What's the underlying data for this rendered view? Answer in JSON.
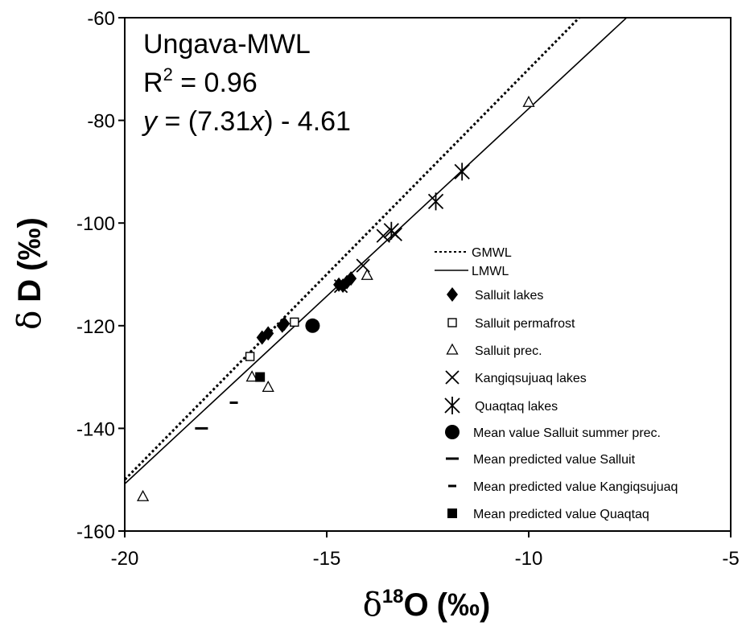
{
  "chart_data": {
    "type": "scatter",
    "xlim": [
      -20,
      -5
    ],
    "ylim": [
      -160,
      -60
    ],
    "x_ticks": [
      -20,
      -15,
      -10,
      -5
    ],
    "y_ticks": [
      -60,
      -80,
      -100,
      -120,
      -140,
      -160
    ],
    "x_tick_labels": [
      "-20",
      "-15",
      "-10",
      "-5"
    ],
    "y_tick_labels": [
      "-60",
      "-80",
      "-100",
      "-120",
      "-140",
      "-160"
    ],
    "xlabel": {
      "prefix": "δ",
      "sup": "18",
      "main": "O",
      "unit": "(‰)"
    },
    "ylabel": {
      "prefix": "δ",
      "main": "D",
      "unit": "(‰)"
    },
    "grid": false,
    "legend_position": "lower-right",
    "annotation": {
      "line1": "Ungava-MWL",
      "r2_prefix": "R",
      "r2_sup": "2",
      "r2_value": " = 0.96",
      "eq_y": "y",
      "eq_mid": " = (7.31",
      "eq_x": "x",
      "eq_end": ") - 4.61"
    },
    "lines": [
      {
        "name": "GMWL",
        "style": "dotted",
        "slope": 8,
        "intercept": 10
      },
      {
        "name": "LMWL",
        "style": "solid",
        "slope": 7.31,
        "intercept": -4.61
      }
    ],
    "series": [
      {
        "name": "Salluit lakes",
        "marker": "diamond",
        "points": [
          [
            -16.6,
            -122.3
          ],
          [
            -16.45,
            -121.5
          ],
          [
            -16.1,
            -120
          ],
          [
            -16.05,
            -119.6
          ],
          [
            -14.7,
            -112
          ],
          [
            -14.6,
            -112.2
          ],
          [
            -14.5,
            -111.5
          ],
          [
            -14.4,
            -110.8
          ]
        ]
      },
      {
        "name": "Salluit permafrost",
        "marker": "open-square",
        "points": [
          [
            -16.9,
            -126
          ],
          [
            -15.8,
            -119.3
          ]
        ]
      },
      {
        "name": "Salluit prec.",
        "marker": "open-triangle",
        "points": [
          [
            -19.55,
            -153.3
          ],
          [
            -16.85,
            -130
          ],
          [
            -16.45,
            -132
          ],
          [
            -14,
            -110.2
          ],
          [
            -10,
            -76.5
          ]
        ]
      },
      {
        "name": "Kangiqsujuaq lakes",
        "marker": "x",
        "points": [
          [
            -14.65,
            -112.3
          ],
          [
            -14.1,
            -108.3
          ],
          [
            -13.6,
            -102.5
          ],
          [
            -13.3,
            -102.2
          ]
        ]
      },
      {
        "name": "Quaqtaq lakes",
        "marker": "asterisk",
        "points": [
          [
            -13.4,
            -101.5
          ],
          [
            -12.3,
            -95.8
          ],
          [
            -11.65,
            -90
          ]
        ]
      },
      {
        "name": "Mean value Salluit summer prec.",
        "marker": "filled-circle",
        "points": [
          [
            -15.35,
            -120
          ]
        ]
      },
      {
        "name": "Mean predicted value Salluit",
        "marker": "dash-long",
        "points": [
          [
            -18.1,
            -140
          ]
        ]
      },
      {
        "name": "Mean predicted value Kangiqsujuaq",
        "marker": "dash-short",
        "points": [
          [
            -17.3,
            -135
          ]
        ]
      },
      {
        "name": "Mean predicted value Quaqtaq",
        "marker": "filled-square",
        "points": [
          [
            -16.65,
            -130
          ]
        ]
      }
    ]
  }
}
